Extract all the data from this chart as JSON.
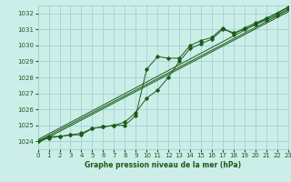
{
  "title": "Graphe pression niveau de la mer (hPa)",
  "bg_color": "#cceee8",
  "grid_color": "#99cccc",
  "line_color": "#1a5c1a",
  "xlim": [
    0,
    23
  ],
  "ylim": [
    1023.5,
    1032.5
  ],
  "yticks": [
    1024,
    1025,
    1026,
    1027,
    1028,
    1029,
    1030,
    1031,
    1032
  ],
  "xticks": [
    0,
    1,
    2,
    3,
    4,
    5,
    6,
    7,
    8,
    9,
    10,
    11,
    12,
    13,
    14,
    15,
    16,
    17,
    18,
    19,
    20,
    21,
    22,
    23
  ],
  "series": {
    "main": [
      [
        0,
        1024.0
      ],
      [
        1,
        1024.3
      ],
      [
        2,
        1024.3
      ],
      [
        3,
        1024.4
      ],
      [
        4,
        1024.4
      ],
      [
        5,
        1024.8
      ],
      [
        6,
        1024.9
      ],
      [
        7,
        1025.0
      ],
      [
        8,
        1025.0
      ],
      [
        9,
        1025.6
      ],
      [
        10,
        1028.5
      ],
      [
        11,
        1029.3
      ],
      [
        12,
        1029.2
      ],
      [
        13,
        1029.2
      ],
      [
        14,
        1030.0
      ],
      [
        15,
        1030.3
      ],
      [
        16,
        1030.5
      ],
      [
        17,
        1031.1
      ],
      [
        18,
        1030.7
      ],
      [
        19,
        1031.1
      ],
      [
        20,
        1031.4
      ],
      [
        21,
        1031.7
      ],
      [
        22,
        1032.0
      ],
      [
        23,
        1032.4
      ]
    ],
    "line2": [
      [
        0,
        1024.0
      ],
      [
        1,
        1024.2
      ],
      [
        2,
        1024.3
      ],
      [
        3,
        1024.4
      ],
      [
        4,
        1024.5
      ],
      [
        5,
        1024.8
      ],
      [
        6,
        1024.9
      ],
      [
        7,
        1025.0
      ],
      [
        8,
        1025.2
      ],
      [
        9,
        1025.8
      ],
      [
        10,
        1026.7
      ],
      [
        11,
        1027.2
      ],
      [
        12,
        1028.0
      ],
      [
        13,
        1029.0
      ],
      [
        14,
        1029.8
      ],
      [
        15,
        1030.1
      ],
      [
        16,
        1030.4
      ],
      [
        17,
        1031.0
      ],
      [
        18,
        1030.8
      ],
      [
        19,
        1031.0
      ],
      [
        20,
        1031.3
      ],
      [
        21,
        1031.6
      ],
      [
        22,
        1031.9
      ],
      [
        23,
        1032.3
      ]
    ],
    "line3": [
      [
        0,
        1024.0
      ],
      [
        23,
        1032.2
      ]
    ],
    "line4": [
      [
        0,
        1024.1
      ],
      [
        23,
        1032.4
      ]
    ],
    "line5": [
      [
        0,
        1023.9
      ],
      [
        23,
        1032.1
      ]
    ]
  }
}
